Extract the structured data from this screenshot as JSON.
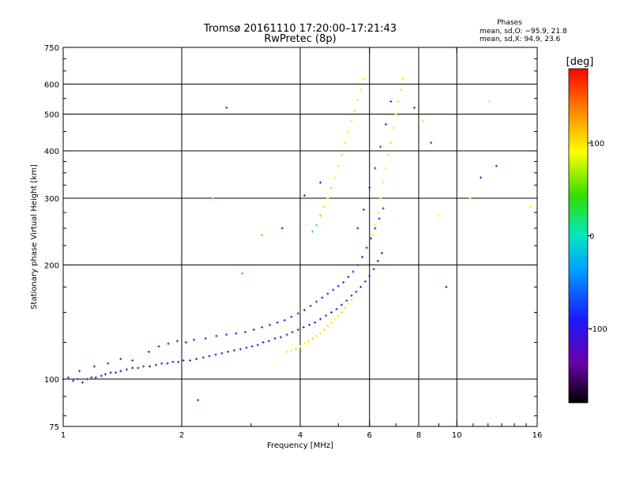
{
  "chart_data": {
    "type": "scatter",
    "title": "Tromsø 20161110 17:20:00–17:21:43",
    "subtitle": "RwPretec (8p)",
    "xlabel": "Frequency [MHz]",
    "ylabel": "Stationary phase Virtual Height [km]",
    "x_scale": "log",
    "y_scale": "log",
    "xlim": [
      1,
      16
    ],
    "ylim": [
      75,
      750
    ],
    "xticks": [
      1,
      2,
      4,
      6,
      8,
      10,
      16
    ],
    "xtick_labels": [
      "1",
      "2",
      "4",
      "6",
      "8",
      "10",
      "16"
    ],
    "yticks": [
      75,
      100,
      200,
      300,
      400,
      500,
      600,
      750
    ],
    "ytick_labels": [
      "75",
      "100",
      "200",
      "300",
      "400",
      "500",
      "600",
      "750"
    ],
    "grid_x": [
      2,
      4,
      6,
      8,
      10
    ],
    "grid_y": [
      100,
      200,
      300,
      400,
      500,
      600
    ],
    "legend_title": "Phases",
    "legend_lines": [
      "mean, sd,O: −95.9, 21.8",
      "mean, sd,X:  94.9, 23.6"
    ],
    "colorbar": {
      "label": "[deg]",
      "range": [
        -180,
        180
      ],
      "ticks": [
        100,
        0,
        -100
      ],
      "tick_labels": [
        "100",
        "0",
        "-100"
      ],
      "colormap": "rainbow"
    },
    "series": [
      {
        "points": [
          [
            1.0,
            100,
            -110
          ],
          [
            1.03,
            101,
            -120
          ],
          [
            1.06,
            99,
            -130
          ],
          [
            1.09,
            100,
            -115
          ],
          [
            1.12,
            98,
            -125
          ],
          [
            1.15,
            100,
            -140
          ],
          [
            1.18,
            101,
            -118
          ],
          [
            1.21,
            101,
            -105
          ],
          [
            1.25,
            102,
            -130
          ],
          [
            1.28,
            103,
            -145
          ],
          [
            1.32,
            104,
            -150
          ],
          [
            1.36,
            104,
            -135
          ],
          [
            1.4,
            105,
            -148
          ],
          [
            1.45,
            106,
            -120
          ],
          [
            1.5,
            107,
            -150
          ],
          [
            1.55,
            107,
            -110
          ],
          [
            1.6,
            108,
            -135
          ],
          [
            1.66,
            108,
            -155
          ],
          [
            1.72,
            109,
            -140
          ],
          [
            1.78,
            110,
            -120
          ],
          [
            1.84,
            110,
            -145
          ],
          [
            1.9,
            111,
            -130
          ],
          [
            1.96,
            111,
            -115
          ],
          [
            2.02,
            112,
            -140
          ],
          [
            2.1,
            112,
            -125
          ],
          [
            2.18,
            113,
            -110
          ],
          [
            2.27,
            114,
            -105
          ],
          [
            2.35,
            115,
            -100
          ],
          [
            2.44,
            116,
            -110
          ],
          [
            2.53,
            117,
            -95
          ],
          [
            2.62,
            118,
            -105
          ],
          [
            2.72,
            119,
            -100
          ],
          [
            2.82,
            120,
            -95
          ],
          [
            2.92,
            121,
            -110
          ],
          [
            3.02,
            122,
            -100
          ],
          [
            3.12,
            123,
            -105
          ],
          [
            3.22,
            125,
            -100
          ],
          [
            3.33,
            126,
            -95
          ],
          [
            3.45,
            128,
            -100
          ],
          [
            3.57,
            129,
            -110
          ],
          [
            3.7,
            131,
            -105
          ],
          [
            3.82,
            133,
            -95
          ],
          [
            3.95,
            135,
            -100
          ],
          [
            4.08,
            137,
            -95
          ],
          [
            4.22,
            139,
            -105
          ],
          [
            4.36,
            141,
            -100
          ],
          [
            4.5,
            144,
            -95
          ],
          [
            4.65,
            147,
            -100
          ],
          [
            4.8,
            150,
            -105
          ],
          [
            4.95,
            153,
            -100
          ],
          [
            5.1,
            157,
            -95
          ],
          [
            5.25,
            161,
            -100
          ],
          [
            5.4,
            166,
            -90
          ],
          [
            5.55,
            170,
            -95
          ],
          [
            5.7,
            175,
            -100
          ],
          [
            5.85,
            181,
            -105
          ],
          [
            6.0,
            187,
            -100
          ],
          [
            6.15,
            195,
            -95
          ],
          [
            6.3,
            205,
            -100
          ],
          [
            6.45,
            215,
            -95
          ],
          [
            1.1,
            105,
            -95
          ],
          [
            1.2,
            108,
            -100
          ],
          [
            1.3,
            110,
            -105
          ],
          [
            1.4,
            113,
            -100
          ],
          [
            1.5,
            112,
            -95
          ],
          [
            1.65,
            118,
            -100
          ],
          [
            1.75,
            122,
            -95
          ],
          [
            1.85,
            124,
            -100
          ],
          [
            1.95,
            126,
            -90
          ],
          [
            2.05,
            125,
            -100
          ],
          [
            2.15,
            127,
            -95
          ],
          [
            2.3,
            128,
            -100
          ],
          [
            2.45,
            130,
            -105
          ],
          [
            2.6,
            131,
            -95
          ],
          [
            2.75,
            132,
            -100
          ],
          [
            2.9,
            133,
            -95
          ],
          [
            3.05,
            135,
            -100
          ],
          [
            3.2,
            137,
            -95
          ],
          [
            3.35,
            139,
            -100
          ],
          [
            3.5,
            141,
            -105
          ],
          [
            3.65,
            143,
            -95
          ],
          [
            3.8,
            146,
            -100
          ],
          [
            3.95,
            149,
            -95
          ],
          [
            4.1,
            152,
            -100
          ],
          [
            4.25,
            156,
            -105
          ],
          [
            4.4,
            160,
            -100
          ],
          [
            4.55,
            164,
            -95
          ],
          [
            4.7,
            168,
            -100
          ],
          [
            4.85,
            172,
            -95
          ],
          [
            5.0,
            176,
            -100
          ],
          [
            5.15,
            180,
            -105
          ],
          [
            5.3,
            186,
            -100
          ],
          [
            5.45,
            192,
            -95
          ],
          [
            5.6,
            200,
            -100
          ],
          [
            5.75,
            210,
            -95
          ],
          [
            5.9,
            222,
            -100
          ],
          [
            6.05,
            235,
            -95
          ],
          [
            6.2,
            250,
            -100
          ],
          [
            6.35,
            265,
            -105
          ],
          [
            6.5,
            282,
            -100
          ],
          [
            3.7,
            118,
            100
          ],
          [
            3.8,
            119,
            95
          ],
          [
            3.9,
            120,
            105
          ],
          [
            4.0,
            122,
            100
          ],
          [
            4.1,
            124,
            95
          ],
          [
            4.2,
            126,
            100
          ],
          [
            4.3,
            128,
            105
          ],
          [
            4.4,
            130,
            100
          ],
          [
            4.5,
            132,
            95
          ],
          [
            4.6,
            135,
            100
          ],
          [
            4.7,
            138,
            105
          ],
          [
            4.8,
            141,
            100
          ],
          [
            4.9,
            144,
            95
          ],
          [
            5.0,
            147,
            100
          ],
          [
            5.1,
            150,
            105
          ],
          [
            5.2,
            154,
            100
          ],
          [
            5.3,
            158,
            95
          ],
          [
            5.4,
            162,
            100
          ],
          [
            4.3,
            245,
            20
          ],
          [
            4.4,
            255,
            40
          ],
          [
            4.5,
            270,
            60
          ],
          [
            4.6,
            285,
            80
          ],
          [
            4.7,
            300,
            100
          ],
          [
            4.8,
            320,
            105
          ],
          [
            4.9,
            340,
            95
          ],
          [
            5.0,
            365,
            100
          ],
          [
            5.1,
            390,
            105
          ],
          [
            5.2,
            420,
            100
          ],
          [
            5.3,
            450,
            95
          ],
          [
            5.4,
            480,
            100
          ],
          [
            5.5,
            510,
            105
          ],
          [
            5.6,
            545,
            100
          ],
          [
            5.7,
            580,
            95
          ],
          [
            5.8,
            620,
            100
          ],
          [
            6.1,
            240,
            100
          ],
          [
            6.2,
            255,
            95
          ],
          [
            6.3,
            275,
            100
          ],
          [
            6.4,
            300,
            105
          ],
          [
            6.5,
            330,
            100
          ],
          [
            6.6,
            360,
            95
          ],
          [
            6.7,
            390,
            100
          ],
          [
            6.8,
            420,
            105
          ],
          [
            6.9,
            460,
            100
          ],
          [
            7.0,
            500,
            95
          ],
          [
            7.1,
            540,
            100
          ],
          [
            7.2,
            580,
            105
          ],
          [
            7.3,
            620,
            100
          ],
          [
            5.6,
            250,
            -100
          ],
          [
            5.8,
            280,
            -95
          ],
          [
            6.0,
            320,
            -100
          ],
          [
            6.2,
            360,
            -105
          ],
          [
            6.4,
            410,
            -100
          ],
          [
            6.6,
            470,
            -95
          ],
          [
            6.8,
            540,
            -100
          ],
          [
            2.6,
            520,
            -110
          ],
          [
            2.85,
            190,
            40
          ],
          [
            3.2,
            240,
            60
          ],
          [
            3.6,
            250,
            -120
          ],
          [
            4.1,
            305,
            -100
          ],
          [
            4.5,
            330,
            -90
          ],
          [
            7.8,
            520,
            -130
          ],
          [
            8.2,
            480,
            100
          ],
          [
            8.6,
            420,
            -110
          ],
          [
            9.0,
            270,
            90
          ],
          [
            9.4,
            175,
            -95
          ],
          [
            10.8,
            300,
            100
          ],
          [
            11.5,
            340,
            -100
          ],
          [
            12.1,
            540,
            100
          ],
          [
            12.6,
            365,
            -110
          ],
          [
            15.4,
            285,
            95
          ],
          [
            2.2,
            88,
            -105
          ],
          [
            2.4,
            300,
            50
          ]
        ]
      }
    ]
  }
}
